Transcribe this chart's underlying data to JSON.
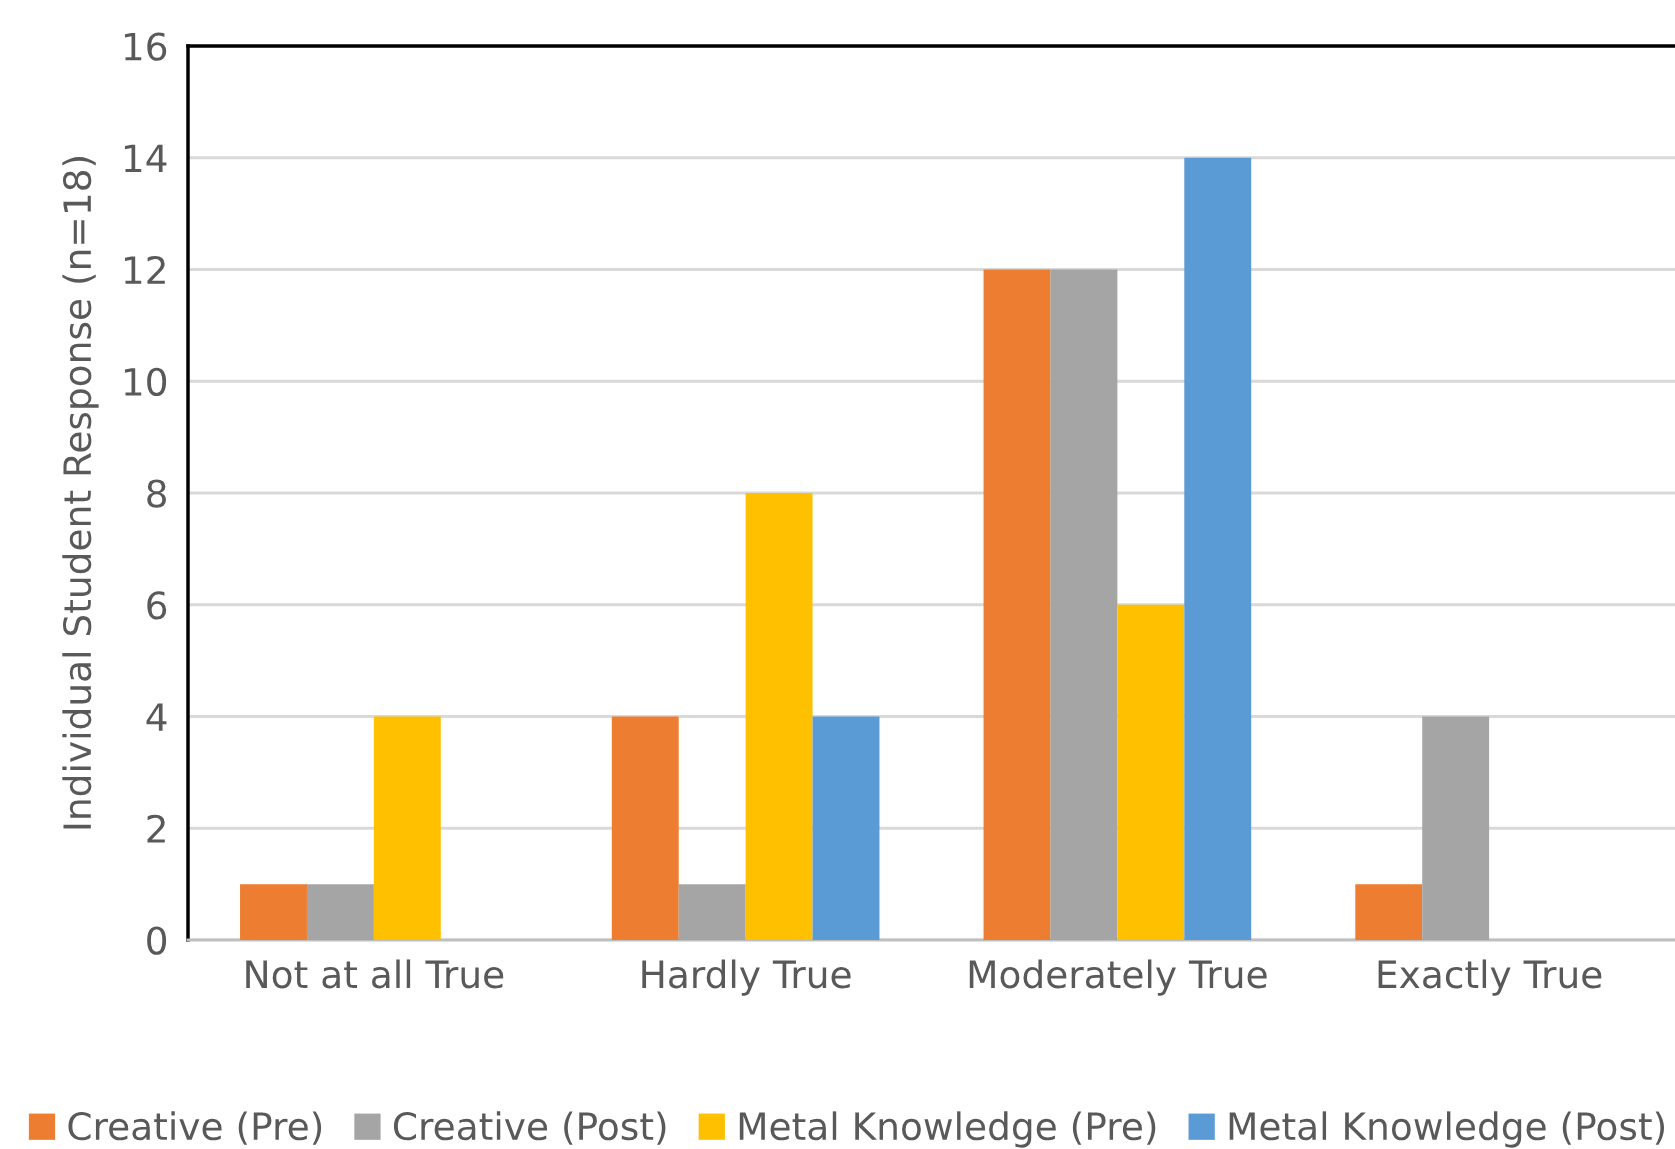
{
  "chart_data": {
    "type": "bar",
    "ylabel": "Individual Student Response (n=18)",
    "categories": [
      "Not at all True",
      "Hardly True",
      "Moderately True",
      "Exactly True"
    ],
    "series": [
      {
        "name": "Creative (Pre)",
        "color": "#ed7d31",
        "values": [
          1,
          4,
          12,
          1
        ]
      },
      {
        "name": "Creative (Post)",
        "color": "#a5a5a5",
        "values": [
          1,
          1,
          12,
          4
        ]
      },
      {
        "name": "Metal Knowledge (Pre)",
        "color": "#ffc000",
        "values": [
          4,
          8,
          6,
          0
        ]
      },
      {
        "name": "Metal Knowledge (Post)",
        "color": "#5b9bd5",
        "values": [
          0,
          4,
          14,
          0
        ]
      }
    ],
    "ylim": [
      0,
      16
    ],
    "yticks": [
      0,
      2,
      4,
      6,
      8,
      10,
      12,
      14,
      16
    ],
    "grid": "y",
    "legend": "bottom"
  }
}
